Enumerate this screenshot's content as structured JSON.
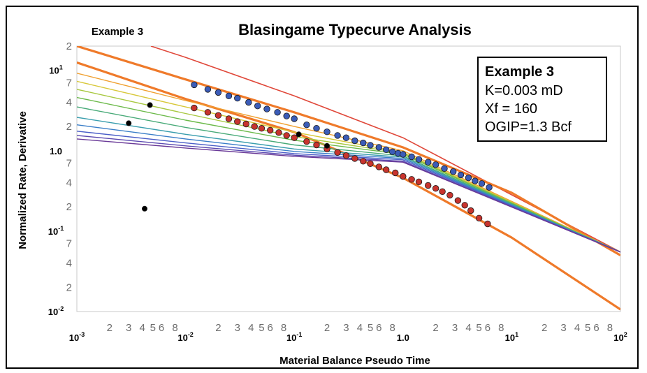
{
  "chart_data": {
    "type": "scatter",
    "title": "Blasingame Typecurve Analysis",
    "subtitle": "Example 3",
    "xlabel": "Material Balance Pseudo Time",
    "ylabel": "Normalized Rate, Derivative",
    "x_scale": "log",
    "y_scale": "log",
    "xlim": [
      0.001,
      100
    ],
    "ylim": [
      0.01,
      20
    ],
    "grid": false,
    "x_ticks": [
      {
        "v": 0.001,
        "t": "10",
        "e": "-3",
        "major": true
      },
      {
        "v": 0.002,
        "t": "2"
      },
      {
        "v": 0.003,
        "t": "3"
      },
      {
        "v": 0.004,
        "t": "4"
      },
      {
        "v": 0.005,
        "t": "5"
      },
      {
        "v": 0.006,
        "t": "6"
      },
      {
        "v": 0.008,
        "t": "8"
      },
      {
        "v": 0.01,
        "t": "10",
        "e": "-2",
        "major": true
      },
      {
        "v": 0.02,
        "t": "2"
      },
      {
        "v": 0.03,
        "t": "3"
      },
      {
        "v": 0.04,
        "t": "4"
      },
      {
        "v": 0.05,
        "t": "5"
      },
      {
        "v": 0.06,
        "t": "6"
      },
      {
        "v": 0.08,
        "t": "8"
      },
      {
        "v": 0.1,
        "t": "10",
        "e": "-1",
        "major": true
      },
      {
        "v": 0.2,
        "t": "2"
      },
      {
        "v": 0.3,
        "t": "3"
      },
      {
        "v": 0.4,
        "t": "4"
      },
      {
        "v": 0.5,
        "t": "5"
      },
      {
        "v": 0.6,
        "t": "6"
      },
      {
        "v": 0.8,
        "t": "8"
      },
      {
        "v": 1,
        "t": "1.0",
        "major": true
      },
      {
        "v": 2,
        "t": "2"
      },
      {
        "v": 3,
        "t": "3"
      },
      {
        "v": 4,
        "t": "4"
      },
      {
        "v": 5,
        "t": "5"
      },
      {
        "v": 6,
        "t": "6"
      },
      {
        "v": 8,
        "t": "8"
      },
      {
        "v": 10,
        "t": "10",
        "e": "1",
        "major": true
      },
      {
        "v": 20,
        "t": "2"
      },
      {
        "v": 30,
        "t": "3"
      },
      {
        "v": 40,
        "t": "4"
      },
      {
        "v": 50,
        "t": "5"
      },
      {
        "v": 60,
        "t": "6"
      },
      {
        "v": 80,
        "t": "8"
      },
      {
        "v": 100,
        "t": "10",
        "e": "2",
        "major": true
      }
    ],
    "y_ticks": [
      {
        "v": 20,
        "t": "2"
      },
      {
        "v": 10,
        "t": "10",
        "e": "1",
        "major": true
      },
      {
        "v": 7,
        "t": "7"
      },
      {
        "v": 4,
        "t": "4"
      },
      {
        "v": 2,
        "t": "2"
      },
      {
        "v": 1,
        "t": "1.0",
        "major": true
      },
      {
        "v": 0.7,
        "t": "7"
      },
      {
        "v": 0.4,
        "t": "4"
      },
      {
        "v": 0.2,
        "t": "2"
      },
      {
        "v": 0.1,
        "t": "10",
        "e": "-1",
        "major": true
      },
      {
        "v": 0.07,
        "t": "7"
      },
      {
        "v": 0.04,
        "t": "4"
      },
      {
        "v": 0.02,
        "t": "2"
      },
      {
        "v": 0.01,
        "t": "10",
        "e": "-2",
        "major": true
      }
    ],
    "typecurves": [
      {
        "color": "#e0483a",
        "width": 1.6,
        "points": [
          [
            0.0048,
            20
          ],
          [
            0.01,
            14.5
          ],
          [
            0.1,
            4.8
          ],
          [
            1,
            1.45
          ],
          [
            100,
            0.055
          ]
        ]
      },
      {
        "color": "#ef7a2a",
        "width": 3.2,
        "points": [
          [
            0.001,
            20
          ],
          [
            0.01,
            7.7
          ],
          [
            0.1,
            3.0
          ],
          [
            1,
            1.1
          ],
          [
            10,
            0.3
          ],
          [
            100,
            0.05
          ]
        ]
      },
      {
        "color": "#ef7a2a",
        "width": 3.2,
        "points": [
          [
            0.001,
            12.5
          ],
          [
            0.01,
            4.4
          ],
          [
            0.1,
            1.7
          ],
          [
            1,
            0.46
          ],
          [
            10,
            0.083
          ],
          [
            100,
            0.0106
          ]
        ]
      },
      {
        "color": "#f0a030",
        "width": 1.4,
        "points": [
          [
            0.001,
            9.2
          ],
          [
            0.01,
            4.2
          ],
          [
            0.1,
            2.0
          ],
          [
            1,
            1.0
          ],
          [
            100,
            0.055
          ]
        ]
      },
      {
        "color": "#d8c83a",
        "width": 1.4,
        "points": [
          [
            0.001,
            7.3
          ],
          [
            0.01,
            3.5
          ],
          [
            0.1,
            1.7
          ],
          [
            1,
            0.95
          ],
          [
            100,
            0.055
          ]
        ]
      },
      {
        "color": "#a8c840",
        "width": 1.4,
        "points": [
          [
            0.001,
            5.8
          ],
          [
            0.01,
            2.9
          ],
          [
            0.1,
            1.5
          ],
          [
            1,
            0.93
          ],
          [
            100,
            0.055
          ]
        ]
      },
      {
        "color": "#6cba4a",
        "width": 1.4,
        "points": [
          [
            0.001,
            4.6
          ],
          [
            0.01,
            2.4
          ],
          [
            0.1,
            1.35
          ],
          [
            1,
            0.9
          ],
          [
            100,
            0.055
          ]
        ]
      },
      {
        "color": "#48aa78",
        "width": 1.4,
        "points": [
          [
            0.001,
            3.5
          ],
          [
            0.01,
            1.95
          ],
          [
            0.1,
            1.18
          ],
          [
            1,
            0.86
          ],
          [
            100,
            0.055
          ]
        ]
      },
      {
        "color": "#3a9eae",
        "width": 1.4,
        "points": [
          [
            0.001,
            2.6
          ],
          [
            0.01,
            1.6
          ],
          [
            0.1,
            1.05
          ],
          [
            1,
            0.83
          ],
          [
            100,
            0.055
          ]
        ]
      },
      {
        "color": "#3a7ec8",
        "width": 1.4,
        "points": [
          [
            0.001,
            2.1
          ],
          [
            0.01,
            1.4
          ],
          [
            0.1,
            0.98
          ],
          [
            1,
            0.8
          ],
          [
            100,
            0.055
          ]
        ]
      },
      {
        "color": "#4a5ec8",
        "width": 1.4,
        "points": [
          [
            0.001,
            1.75
          ],
          [
            0.01,
            1.25
          ],
          [
            0.1,
            0.92
          ],
          [
            1,
            0.77
          ],
          [
            100,
            0.055
          ]
        ]
      },
      {
        "color": "#5a48b0",
        "width": 1.4,
        "points": [
          [
            0.001,
            1.55
          ],
          [
            0.01,
            1.15
          ],
          [
            0.1,
            0.88
          ],
          [
            1,
            0.74
          ],
          [
            100,
            0.055
          ]
        ]
      },
      {
        "color": "#6a3a98",
        "width": 1.4,
        "points": [
          [
            0.001,
            1.4
          ],
          [
            0.01,
            1.08
          ],
          [
            0.1,
            0.85
          ],
          [
            1,
            0.72
          ],
          [
            100,
            0.055
          ]
        ]
      }
    ],
    "series": [
      {
        "color": "#3b5cb8",
        "points": [
          [
            0.012,
            6.6
          ],
          [
            0.016,
            5.8
          ],
          [
            0.02,
            5.3
          ],
          [
            0.025,
            4.8
          ],
          [
            0.03,
            4.5
          ],
          [
            0.038,
            4.0
          ],
          [
            0.046,
            3.6
          ],
          [
            0.056,
            3.3
          ],
          [
            0.07,
            3.0
          ],
          [
            0.085,
            2.7
          ],
          [
            0.1,
            2.5
          ],
          [
            0.13,
            2.1
          ],
          [
            0.16,
            1.9
          ],
          [
            0.2,
            1.72
          ],
          [
            0.25,
            1.55
          ],
          [
            0.3,
            1.45
          ],
          [
            0.36,
            1.33
          ],
          [
            0.43,
            1.25
          ],
          [
            0.5,
            1.17
          ],
          [
            0.6,
            1.1
          ],
          [
            0.7,
            1.03
          ],
          [
            0.8,
            0.97
          ],
          [
            0.9,
            0.93
          ],
          [
            1.0,
            0.9
          ],
          [
            1.2,
            0.84
          ],
          [
            1.4,
            0.78
          ],
          [
            1.7,
            0.72
          ],
          [
            2.0,
            0.67
          ],
          [
            2.4,
            0.6
          ],
          [
            2.9,
            0.55
          ],
          [
            3.4,
            0.5
          ],
          [
            4.0,
            0.46
          ],
          [
            4.6,
            0.42
          ],
          [
            5.3,
            0.39
          ],
          [
            6.2,
            0.35
          ]
        ]
      },
      {
        "color": "#c8342e",
        "points": [
          [
            0.012,
            3.4
          ],
          [
            0.016,
            3.0
          ],
          [
            0.02,
            2.75
          ],
          [
            0.025,
            2.5
          ],
          [
            0.03,
            2.3
          ],
          [
            0.036,
            2.15
          ],
          [
            0.043,
            2.0
          ],
          [
            0.05,
            1.9
          ],
          [
            0.06,
            1.8
          ],
          [
            0.072,
            1.68
          ],
          [
            0.085,
            1.55
          ],
          [
            0.1,
            1.45
          ],
          [
            0.13,
            1.3
          ],
          [
            0.16,
            1.18
          ],
          [
            0.2,
            1.05
          ],
          [
            0.25,
            0.95
          ],
          [
            0.3,
            0.87
          ],
          [
            0.36,
            0.8
          ],
          [
            0.43,
            0.74
          ],
          [
            0.5,
            0.69
          ],
          [
            0.6,
            0.63
          ],
          [
            0.7,
            0.58
          ],
          [
            0.85,
            0.53
          ],
          [
            1.0,
            0.48
          ],
          [
            1.2,
            0.44
          ],
          [
            1.4,
            0.41
          ],
          [
            1.7,
            0.37
          ],
          [
            2.0,
            0.34
          ],
          [
            2.3,
            0.31
          ],
          [
            2.7,
            0.28
          ],
          [
            3.2,
            0.24
          ],
          [
            3.7,
            0.21
          ],
          [
            4.2,
            0.18
          ],
          [
            5.0,
            0.145
          ],
          [
            6.0,
            0.123
          ]
        ]
      },
      {
        "color": "#000000",
        "points": [
          [
            0.003,
            2.2
          ],
          [
            0.0042,
            0.19
          ],
          [
            0.0047,
            3.7
          ],
          [
            0.11,
            1.6
          ],
          [
            0.2,
            1.15
          ]
        ]
      }
    ],
    "legend_box": {
      "title": "Example 3",
      "lines": [
        "K=0.003 mD",
        "Xf = 160",
        "OGIP=1.3 Bcf"
      ]
    }
  }
}
